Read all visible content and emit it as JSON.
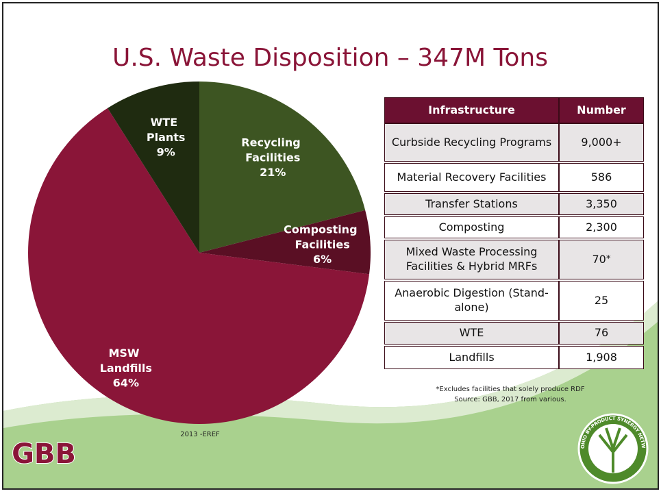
{
  "chart_data": {
    "type": "pie",
    "title": "U.S. Waste Disposition – 347M Tons",
    "categories": [
      "Recycling Facilities",
      "Composting Facilities",
      "MSW Landfills",
      "WTE Plants"
    ],
    "values": [
      21,
      6,
      64,
      9
    ],
    "value_labels": [
      "21%",
      "6%",
      "64%",
      "9%"
    ],
    "colors": [
      "#3d5522",
      "#5a0f24",
      "#8a1538",
      "#1f2b10"
    ],
    "source": "2013 -EREF"
  },
  "table": {
    "header": [
      "Infrastructure",
      "Number"
    ],
    "rows": [
      {
        "name": "Curbside Recycling Programs",
        "number": "9,000+"
      },
      {
        "name": "Material Recovery Facilities",
        "number": "586"
      },
      {
        "name": "Transfer Stations",
        "number": "3,350"
      },
      {
        "name": "Composting",
        "number": "2,300"
      },
      {
        "name": "Mixed Waste Processing Facilities & Hybrid MRFs",
        "number": "70",
        "mark": "*"
      },
      {
        "name": "Anaerobic Digestion (Stand-alone)",
        "number": "25"
      },
      {
        "name": "WTE",
        "number": "76"
      },
      {
        "name": "Landfills",
        "number": "1,908"
      }
    ]
  },
  "notes": [
    "*Excludes facilities that solely produce RDF",
    "Source: GBB, 2017 from various."
  ],
  "logos": {
    "left": "GBB",
    "right": "OHIO BY-PRODUCT SYNERGY NETWORK"
  }
}
